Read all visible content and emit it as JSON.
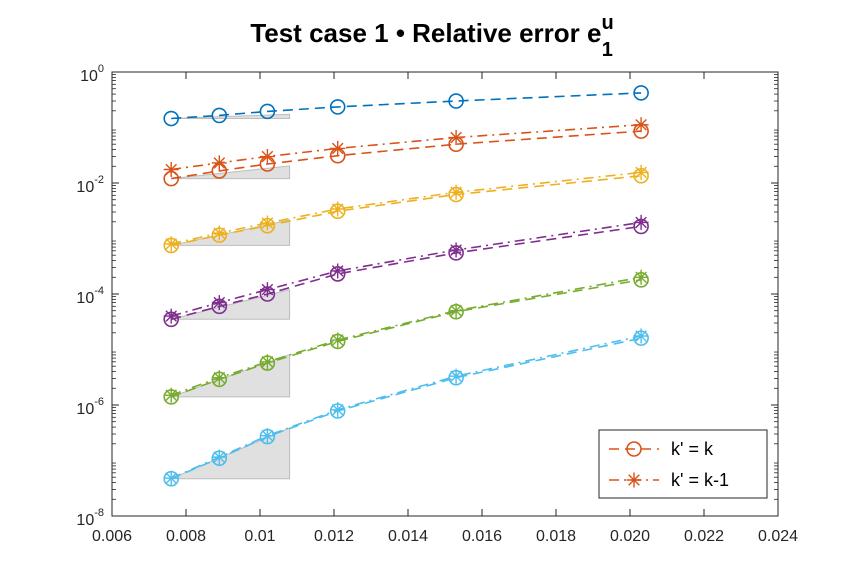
{
  "chart_data": {
    "type": "line",
    "scale": {
      "x": "linear",
      "y": "log"
    },
    "title": {
      "main": "Test case 1 • Relative error e",
      "superscript": "u",
      "subscript": "1"
    },
    "xlabel": "",
    "ylabel": "",
    "xlim": [
      0.006,
      0.024
    ],
    "ylim": [
      1e-08,
      1
    ],
    "x_ticks": [
      {
        "value": 0.006,
        "label": "0.006"
      },
      {
        "value": 0.008,
        "label": "0.008"
      },
      {
        "value": 0.01,
        "label": "0.01"
      },
      {
        "value": 0.012,
        "label": "0.012"
      },
      {
        "value": 0.014,
        "label": "0.014"
      },
      {
        "value": 0.016,
        "label": "0.016"
      },
      {
        "value": 0.018,
        "label": "0.018"
      },
      {
        "value": 0.02,
        "label": "0.020"
      },
      {
        "value": 0.022,
        "label": "0.022"
      },
      {
        "value": 0.024,
        "label": "0.024"
      }
    ],
    "y_ticks": [
      {
        "value": 1,
        "base": "10",
        "exp": "0"
      },
      {
        "value": 0.01,
        "base": "10",
        "exp": "-2"
      },
      {
        "value": 0.0001,
        "base": "10",
        "exp": "-4"
      },
      {
        "value": 1e-06,
        "base": "10",
        "exp": "-6"
      },
      {
        "value": 1e-08,
        "base": "10",
        "exp": "-8"
      }
    ],
    "grid": false,
    "legend": {
      "position": "bottom-right",
      "entries": [
        {
          "label": "k' = k",
          "marker": "circle",
          "dash": "dashed",
          "color": "#D95319"
        },
        {
          "label": "k' = k-1",
          "marker": "asterisk",
          "dash": "dashdot",
          "color": "#D95319"
        }
      ]
    },
    "x": [
      0.0076,
      0.0089,
      0.0102,
      0.0121,
      0.0153,
      0.0203
    ],
    "series": [
      {
        "name": "k' = k",
        "order": 0,
        "color": "#0072BD",
        "marker": "circle",
        "dash": "dashed",
        "values": [
          0.145,
          0.165,
          0.195,
          0.235,
          0.3,
          0.42
        ]
      },
      {
        "name": "k' = k",
        "order": 1,
        "color": "#D95319",
        "marker": "circle",
        "dash": "dashed",
        "values": [
          0.012,
          0.0165,
          0.022,
          0.031,
          0.05,
          0.086
        ]
      },
      {
        "name": "k' = k-1",
        "order": 1,
        "color": "#D95319",
        "marker": "asterisk",
        "dash": "dashdot",
        "values": [
          0.0175,
          0.023,
          0.03,
          0.042,
          0.066,
          0.112
        ]
      },
      {
        "name": "k' = k",
        "order": 2,
        "color": "#EDB120",
        "marker": "circle",
        "dash": "dashed",
        "values": [
          0.00075,
          0.00115,
          0.0017,
          0.0031,
          0.0062,
          0.0135
        ]
      },
      {
        "name": "k' = k-1",
        "order": 2,
        "color": "#EDB120",
        "marker": "asterisk",
        "dash": "dashdot",
        "values": [
          0.0008,
          0.00125,
          0.0019,
          0.0034,
          0.0068,
          0.0155
        ]
      },
      {
        "name": "k' = k",
        "order": 3,
        "color": "#7E2F8E",
        "marker": "circle",
        "dash": "dashed",
        "values": [
          3.5e-05,
          6e-05,
          0.0001,
          0.00023,
          0.00055,
          0.00165
        ]
      },
      {
        "name": "k' = k-1",
        "order": 3,
        "color": "#7E2F8E",
        "marker": "asterisk",
        "dash": "dashdot",
        "values": [
          4e-05,
          7e-05,
          0.00012,
          0.00026,
          0.00062,
          0.00195
        ]
      },
      {
        "name": "k' = k",
        "order": 4,
        "color": "#77AC30",
        "marker": "circle",
        "dash": "dashed",
        "values": [
          1.4e-06,
          2.9e-06,
          5.7e-06,
          1.4e-05,
          4.8e-05,
          0.00018
        ]
      },
      {
        "name": "k' = k-1",
        "order": 4,
        "color": "#77AC30",
        "marker": "asterisk",
        "dash": "dashdot",
        "values": [
          1.5e-06,
          3.1e-06,
          6e-06,
          1.48e-05,
          5e-05,
          0.0002
        ]
      },
      {
        "name": "k' = k",
        "order": 5,
        "color": "#4DBEEE",
        "marker": "circle",
        "dash": "dashed",
        "values": [
          4.7e-08,
          1.1e-07,
          2.7e-07,
          7.8e-07,
          3.1e-06,
          1.6e-05
        ]
      },
      {
        "name": "k' = k-1",
        "order": 5,
        "color": "#4DBEEE",
        "marker": "asterisk",
        "dash": "dashdot",
        "values": [
          4.8e-08,
          1.15e-07,
          2.8e-07,
          8.2e-07,
          3.3e-06,
          1.75e-05
        ]
      }
    ],
    "slope_triangles": [
      {
        "x0": 0.0076,
        "x1": 0.0108,
        "y0": 0.145,
        "slope": 0.5
      },
      {
        "x0": 0.0076,
        "x1": 0.0108,
        "y0": 0.012,
        "slope": 1.5
      },
      {
        "x0": 0.0076,
        "x1": 0.0108,
        "y0": 0.00075,
        "slope": 3
      },
      {
        "x0": 0.0076,
        "x1": 0.0108,
        "y0": 3.5e-05,
        "slope": 3.5
      },
      {
        "x0": 0.0076,
        "x1": 0.0108,
        "y0": 1.4e-06,
        "slope": 5
      },
      {
        "x0": 0.0076,
        "x1": 0.0108,
        "y0": 4.7e-08,
        "slope": 6
      }
    ],
    "triangle_style": {
      "fill": "#E0E0E0",
      "stroke": "#BDBDBD"
    }
  }
}
